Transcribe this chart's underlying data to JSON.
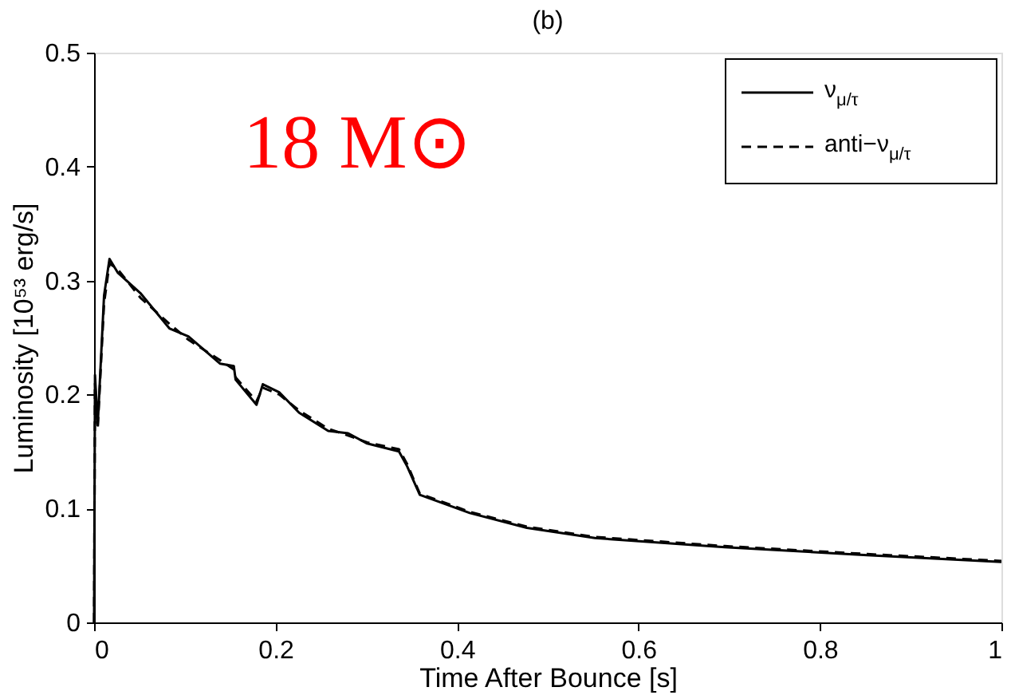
{
  "chart_data": {
    "type": "line",
    "title": "(b)",
    "xlabel": "Time After Bounce [s]",
    "ylabel": "Luminosity [10⁵³ erg/s]",
    "annotations": [
      "18 M⊙"
    ],
    "series": [
      {
        "name": "ν$_{μ/τ}$",
        "color": "#000000",
        "line_style": "solid",
        "x": [
          0,
          0.001,
          0.004,
          0.011,
          0.017,
          0.026,
          0.051,
          0.083,
          0.104,
          0.139,
          0.154,
          0.156,
          0.179,
          0.186,
          0.204,
          0.226,
          0.258,
          0.28,
          0.301,
          0.336,
          0.345,
          0.359,
          0.414,
          0.477,
          0.552,
          0.695,
          0.852,
          1.0
        ],
        "values": [
          0,
          0.217,
          0.173,
          0.287,
          0.319,
          0.307,
          0.289,
          0.258,
          0.251,
          0.227,
          0.225,
          0.213,
          0.191,
          0.209,
          0.202,
          0.184,
          0.168,
          0.166,
          0.157,
          0.15,
          0.137,
          0.112,
          0.096,
          0.083,
          0.074,
          0.066,
          0.059,
          0.053
        ]
      },
      {
        "name": "anti−ν$_{μ/τ}$",
        "color": "#000000",
        "line_style": "dashed",
        "x": [
          0,
          0.001,
          0.004,
          0.011,
          0.017,
          0.026,
          0.051,
          0.083,
          0.104,
          0.139,
          0.154,
          0.156,
          0.179,
          0.186,
          0.204,
          0.226,
          0.258,
          0.28,
          0.301,
          0.336,
          0.345,
          0.359,
          0.414,
          0.477,
          0.552,
          0.695,
          0.852,
          1.0
        ],
        "values": [
          0,
          0.21,
          0.17,
          0.28,
          0.315,
          0.31,
          0.285,
          0.262,
          0.248,
          0.23,
          0.222,
          0.215,
          0.194,
          0.206,
          0.2,
          0.186,
          0.17,
          0.164,
          0.158,
          0.152,
          0.139,
          0.113,
          0.097,
          0.084,
          0.075,
          0.067,
          0.06,
          0.054
        ]
      }
    ],
    "xlim": [
      0,
      1
    ],
    "ylim": [
      0,
      0.5
    ],
    "xticks": [
      0,
      0.2,
      0.4,
      0.6,
      0.8,
      1
    ],
    "yticks": [
      0,
      0.1,
      0.2,
      0.3,
      0.4,
      0.5
    ],
    "grid": false,
    "legend": "top right"
  }
}
